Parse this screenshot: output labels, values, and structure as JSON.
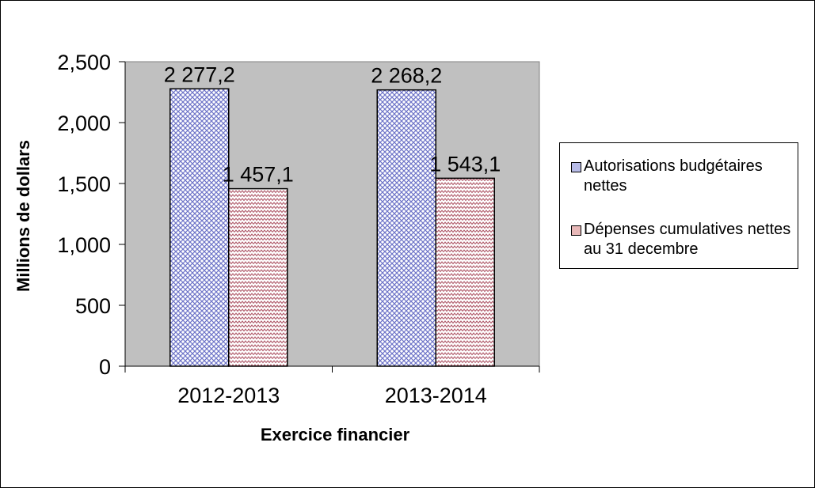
{
  "chart_data": {
    "type": "bar",
    "categories": [
      "2012-2013",
      "2013-2014"
    ],
    "series": [
      {
        "name": "Autorisations budgétaires nettes",
        "values": [
          2277.2,
          2268.2
        ],
        "labels": [
          "2 277,2",
          "2 268,2"
        ],
        "color": "#b8bce8",
        "pattern": "crosshatch"
      },
      {
        "name": "Dépenses cumulatives nettes au 31 decembre",
        "values": [
          1457.1,
          1543.1
        ],
        "labels": [
          "1 457,1",
          "1 543,1"
        ],
        "color": "#e8b8b8",
        "pattern": "zigzag"
      }
    ],
    "yticks": [
      "0",
      "500",
      "1,000",
      "1,500",
      "2,000",
      "2,500"
    ],
    "ytick_values": [
      0,
      500,
      1000,
      1500,
      2000,
      2500
    ],
    "ylim": [
      0,
      2500
    ],
    "xlabel": "Exercice financier",
    "ylabel": "Millions de dollars",
    "plot_background": "#c0c0c0",
    "grid": false,
    "legend_position": "right"
  }
}
